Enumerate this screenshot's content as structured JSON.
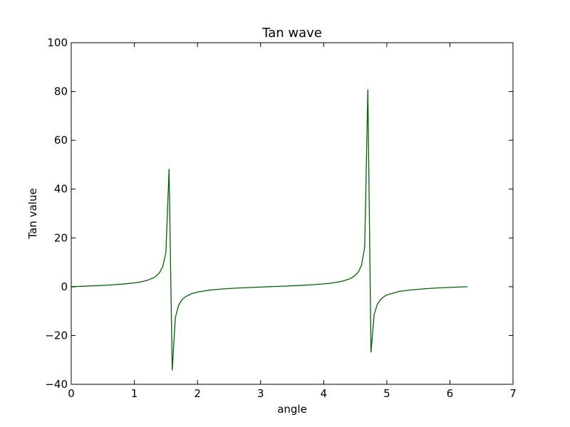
{
  "chart_data": {
    "type": "line",
    "title": "Tan wave",
    "xlabel": "angle",
    "ylabel": "Tan value",
    "xlim": [
      0,
      7
    ],
    "ylim": [
      -40,
      100
    ],
    "xticks": [
      "0",
      "1",
      "2",
      "3",
      "4",
      "5",
      "6",
      "7"
    ],
    "yticks": [
      "−40",
      "−20",
      "0",
      "20",
      "40",
      "60",
      "80",
      "100"
    ],
    "grid": false,
    "legend": "none",
    "series": [
      {
        "color": "#006400",
        "x": [
          0,
          0.2,
          0.4,
          0.6,
          0.8,
          1.0,
          1.1,
          1.2,
          1.3,
          1.35,
          1.4,
          1.45,
          1.5,
          1.55,
          1.6,
          1.65,
          1.7,
          1.75,
          1.8,
          1.9,
          2.0,
          2.2,
          2.4,
          2.6,
          2.8,
          3.0,
          3.2,
          3.4,
          3.6,
          3.8,
          4.0,
          4.1,
          4.2,
          4.3,
          4.4,
          4.45,
          4.5,
          4.55,
          4.6,
          4.65,
          4.7,
          4.75,
          4.8,
          4.85,
          4.9,
          4.95,
          5.0,
          5.2,
          5.4,
          5.6,
          5.8,
          6.0,
          6.1,
          6.2,
          6.28
        ],
        "y": [
          0,
          0.2,
          0.42,
          0.68,
          1.03,
          1.56,
          1.96,
          2.57,
          3.6,
          4.46,
          5.8,
          8.24,
          14.1,
          48.1,
          -34.2,
          -12.6,
          -7.7,
          -5.5,
          -4.29,
          -2.92,
          -2.19,
          -1.37,
          -0.92,
          -0.6,
          -0.36,
          -0.14,
          0.06,
          0.26,
          0.49,
          0.77,
          1.16,
          1.42,
          1.77,
          2.28,
          3.1,
          3.74,
          4.64,
          6.05,
          8.86,
          16.2,
          80.7,
          -26.8,
          -11.4,
          -7.2,
          -5.3,
          -4.17,
          -3.38,
          -1.89,
          -1.29,
          -0.85,
          -0.52,
          -0.29,
          -0.18,
          -0.08,
          -0.003
        ]
      }
    ]
  }
}
